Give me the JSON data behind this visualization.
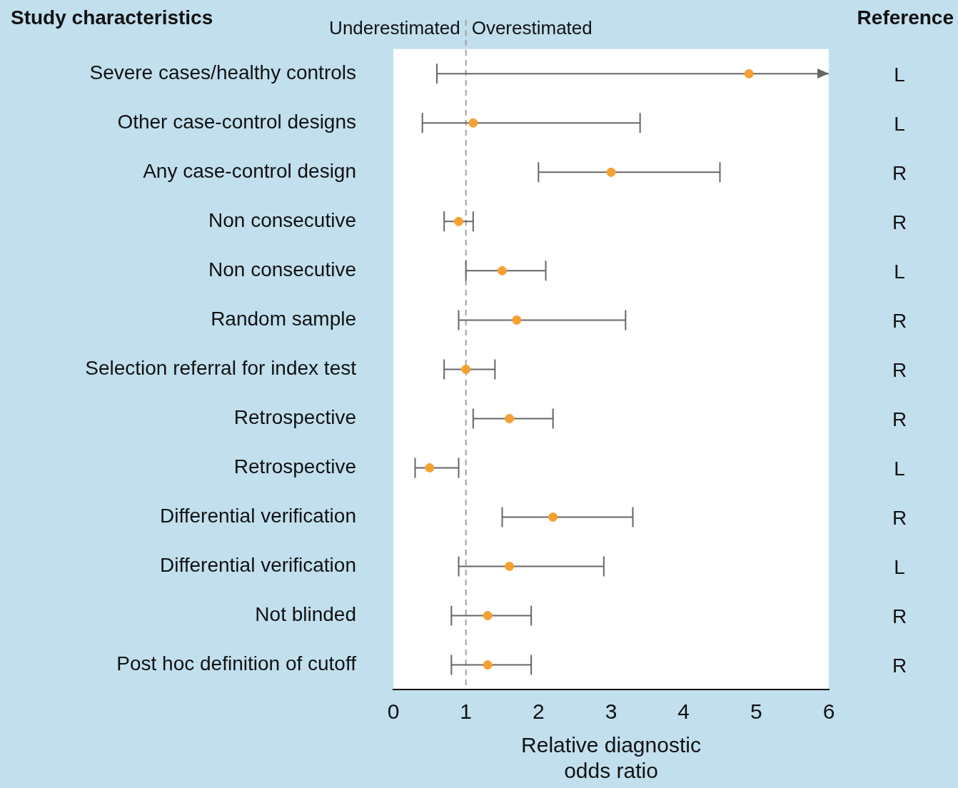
{
  "chart_data": {
    "type": "scatter",
    "orientation": "horizontal",
    "ylabel": "Study characteristics",
    "y2label": "Reference",
    "xlabel": "Relative diagnostic odds ratio",
    "categories": [
      "Severe cases/healthy controls",
      "Other case-control designs",
      "Any case-control design",
      "Non consecutive",
      "Non consecutive",
      "Random sample",
      "Selection referral for index test",
      "Retrospective",
      "Retrospective",
      "Differential verification",
      "Differential verification",
      "Not blinded",
      "Post hoc definition of cutoff"
    ],
    "y2_categories": [
      "L",
      "L",
      "R",
      "R",
      "L",
      "R",
      "R",
      "R",
      "L",
      "R",
      "L",
      "R",
      "R"
    ],
    "values": [
      4.9,
      1.1,
      3.0,
      0.9,
      1.5,
      1.7,
      1.0,
      1.6,
      0.5,
      2.2,
      1.6,
      1.3,
      1.3
    ],
    "errors": [
      [
        0.6,
        6
      ],
      [
        0.4,
        3.4
      ],
      [
        2.0,
        4.5
      ],
      [
        0.7,
        1.1
      ],
      [
        1.0,
        2.1
      ],
      [
        0.9,
        3.2
      ],
      [
        0.7,
        1.4
      ],
      [
        1.1,
        2.2
      ],
      [
        0.3,
        0.9
      ],
      [
        1.5,
        3.3
      ],
      [
        0.9,
        2.9
      ],
      [
        0.8,
        1.9
      ],
      [
        0.8,
        1.9
      ]
    ],
    "color": "#f5a030",
    "marker": "circle",
    "xlim": [
      0,
      6
    ],
    "xticks": [
      0,
      1,
      2,
      3,
      4,
      5,
      6
    ],
    "ref_lines": [
      {
        "axis": "x",
        "value": 1,
        "color": "#a0a0a0",
        "line_style": "dashed"
      }
    ],
    "annotations": [
      "Underestimated",
      "Overestimated"
    ],
    "legend": false,
    "grid": false
  }
}
